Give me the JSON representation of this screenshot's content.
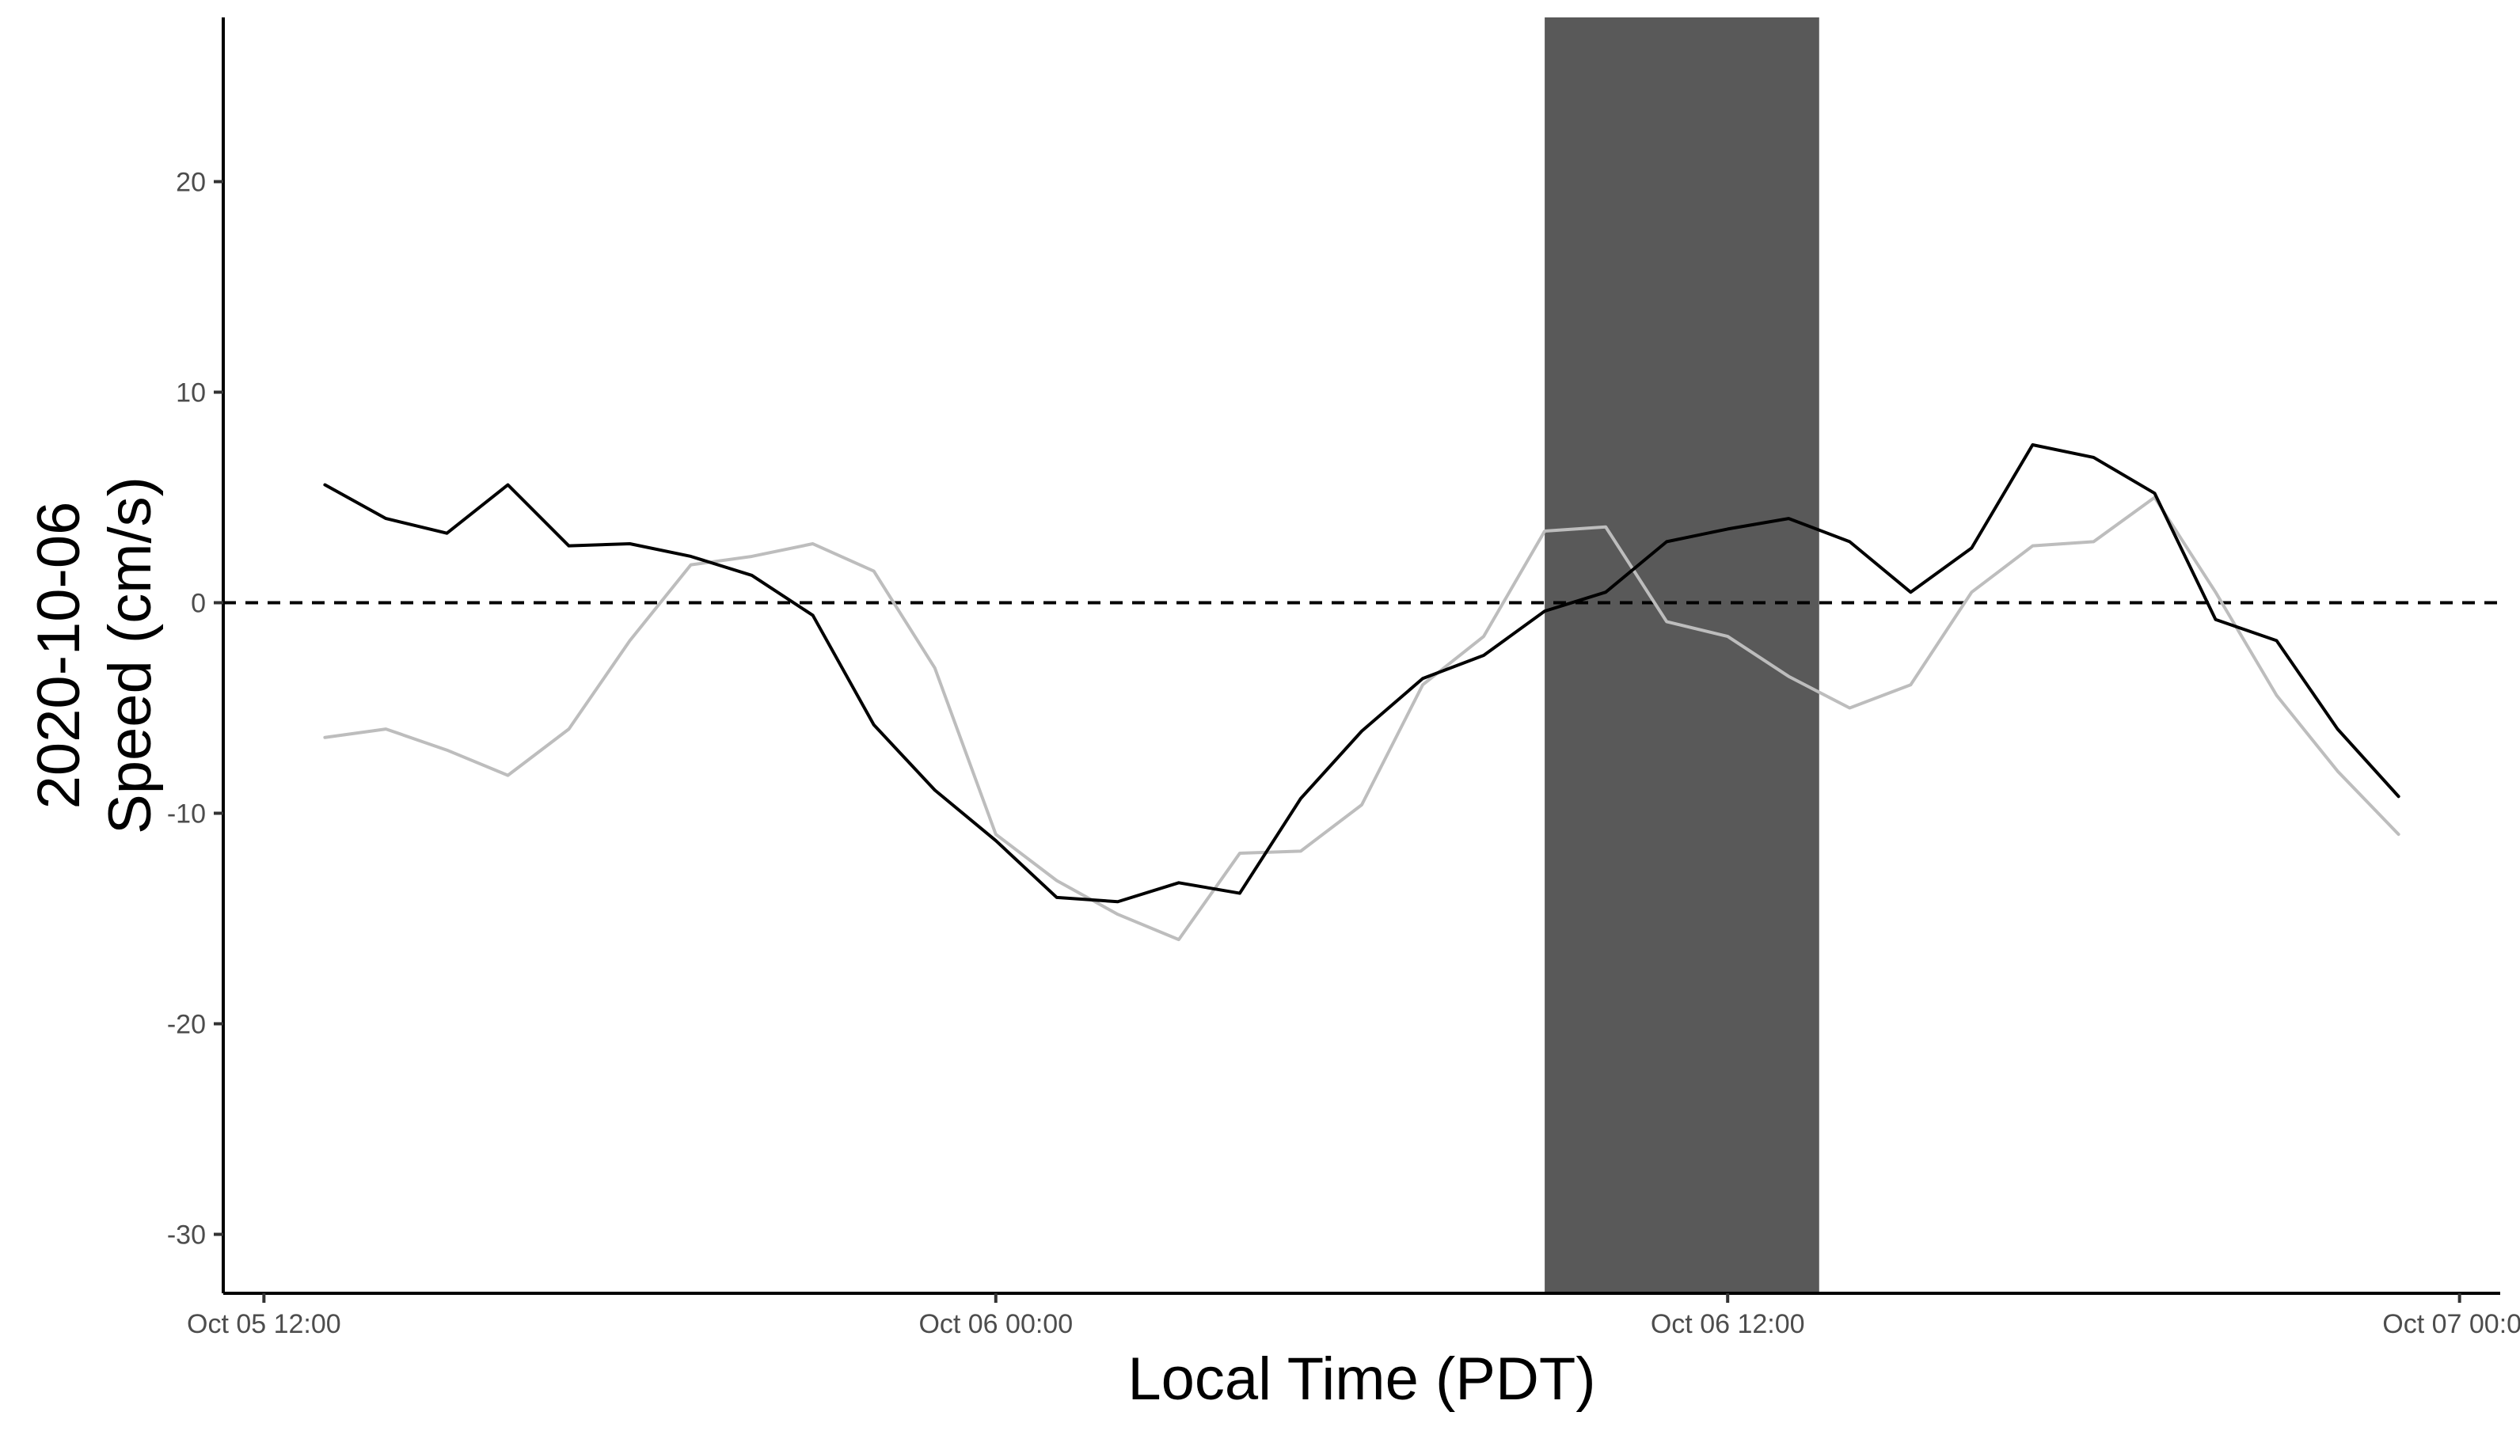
{
  "chart_data": {
    "type": "line",
    "title": "",
    "xlabel": "Local Time (PDT)",
    "ylabel_lines": [
      "2020-10-06",
      "Speed (cm/s)"
    ],
    "x_unit": "Local time (PDT)",
    "xlim": [
      "2020-10-05 11:20",
      "2020-10-07 00:40"
    ],
    "ylim": [
      -32.8,
      27.8
    ],
    "x_ticks": [
      {
        "t": "2020-10-05 12:00",
        "label": "Oct 05 12:00"
      },
      {
        "t": "2020-10-06 00:00",
        "label": "Oct 06 00:00"
      },
      {
        "t": "2020-10-06 12:00",
        "label": "Oct 06 12:00"
      },
      {
        "t": "2020-10-07 00:00",
        "label": "Oct 07 00:00"
      }
    ],
    "y_ticks": [
      20,
      10,
      0,
      -10,
      -20,
      -30
    ],
    "y_tick_labels": [
      "20",
      "10",
      "0",
      "-10",
      "-20",
      "-30"
    ],
    "reference_line": {
      "y": 0,
      "style": "dashed",
      "color": "#000000"
    },
    "shaded_period": {
      "start": "2020-10-06 09:00",
      "end": "2020-10-06 13:30",
      "color": "#595959"
    },
    "grid": false,
    "legend": "none",
    "series": [
      {
        "color": "#000000",
        "x": [
          "2020-10-05 13:00",
          "2020-10-05 14:00",
          "2020-10-05 15:00",
          "2020-10-05 16:00",
          "2020-10-05 17:00",
          "2020-10-05 18:00",
          "2020-10-05 19:00",
          "2020-10-05 20:00",
          "2020-10-05 21:00",
          "2020-10-05 22:00",
          "2020-10-05 23:00",
          "2020-10-06 00:00",
          "2020-10-06 01:00",
          "2020-10-06 02:00",
          "2020-10-06 03:00",
          "2020-10-06 04:00",
          "2020-10-06 05:00",
          "2020-10-06 06:00",
          "2020-10-06 07:00",
          "2020-10-06 08:00",
          "2020-10-06 09:00",
          "2020-10-06 10:00",
          "2020-10-06 11:00",
          "2020-10-06 12:00",
          "2020-10-06 13:00",
          "2020-10-06 14:00",
          "2020-10-06 15:00",
          "2020-10-06 16:00",
          "2020-10-06 17:00",
          "2020-10-06 18:00",
          "2020-10-06 19:00",
          "2020-10-06 20:00",
          "2020-10-06 21:00",
          "2020-10-06 22:00",
          "2020-10-06 23:00"
        ],
        "values": [
          5.6,
          4.0,
          3.3,
          5.6,
          2.7,
          2.8,
          2.2,
          1.3,
          -0.6,
          -5.8,
          -8.9,
          -11.3,
          -14.0,
          -14.2,
          -13.3,
          -13.8,
          -9.3,
          -6.1,
          -3.6,
          -2.5,
          -0.4,
          0.5,
          2.9,
          3.5,
          4.0,
          2.9,
          0.5,
          2.6,
          7.5,
          6.9,
          5.2,
          -0.8,
          -1.8,
          -6.0,
          -9.2
        ]
      },
      {
        "color": "#bdbdbd",
        "x": [
          "2020-10-05 13:00",
          "2020-10-05 14:00",
          "2020-10-05 15:00",
          "2020-10-05 16:00",
          "2020-10-05 17:00",
          "2020-10-05 18:00",
          "2020-10-05 19:00",
          "2020-10-05 20:00",
          "2020-10-05 21:00",
          "2020-10-05 22:00",
          "2020-10-05 23:00",
          "2020-10-06 00:00",
          "2020-10-06 01:00",
          "2020-10-06 02:00",
          "2020-10-06 03:00",
          "2020-10-06 04:00",
          "2020-10-06 05:00",
          "2020-10-06 06:00",
          "2020-10-06 07:00",
          "2020-10-06 08:00",
          "2020-10-06 09:00",
          "2020-10-06 10:00",
          "2020-10-06 11:00",
          "2020-10-06 12:00",
          "2020-10-06 13:00",
          "2020-10-06 14:00",
          "2020-10-06 15:00",
          "2020-10-06 16:00",
          "2020-10-06 17:00",
          "2020-10-06 18:00",
          "2020-10-06 19:00",
          "2020-10-06 20:00",
          "2020-10-06 21:00",
          "2020-10-06 22:00",
          "2020-10-06 23:00"
        ],
        "values": [
          -6.4,
          -6.0,
          -7.0,
          -8.2,
          -6.0,
          -1.8,
          1.8,
          2.2,
          2.8,
          1.5,
          -3.1,
          -11.0,
          -13.2,
          -14.8,
          -16.0,
          -11.9,
          -11.8,
          -9.6,
          -3.9,
          -1.6,
          3.4,
          3.6,
          -0.9,
          -1.6,
          -3.5,
          -5.0,
          -3.9,
          0.5,
          2.7,
          2.9,
          5.0,
          0.5,
          -4.4,
          -8.0,
          -11.0
        ]
      }
    ]
  }
}
